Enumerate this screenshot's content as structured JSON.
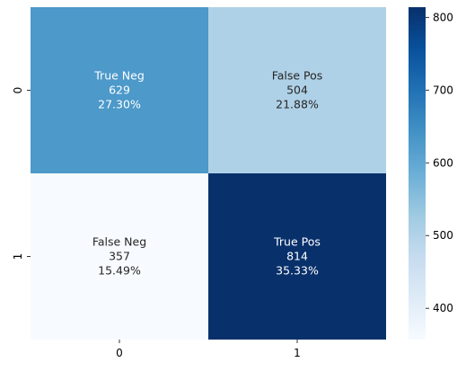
{
  "chart_data": {
    "type": "heatmap",
    "x_categories": [
      "0",
      "1"
    ],
    "y_categories": [
      "0",
      "1"
    ],
    "cells": [
      {
        "row": 0,
        "col": 0,
        "label": "True Neg",
        "count": "629",
        "percent": "27.30%",
        "value": 629
      },
      {
        "row": 0,
        "col": 1,
        "label": "False Pos",
        "count": "504",
        "percent": "21.88%",
        "value": 504
      },
      {
        "row": 1,
        "col": 0,
        "label": "False Neg",
        "count": "357",
        "percent": "15.49%",
        "value": 357
      },
      {
        "row": 1,
        "col": 1,
        "label": "True Pos",
        "count": "814",
        "percent": "35.33%",
        "value": 814
      }
    ],
    "colorbar": {
      "min": 357,
      "max": 814,
      "ticks": [
        400,
        500,
        600,
        700,
        800
      ],
      "colormap": "Blues"
    },
    "title": "",
    "xlabel": "",
    "ylabel": ""
  }
}
